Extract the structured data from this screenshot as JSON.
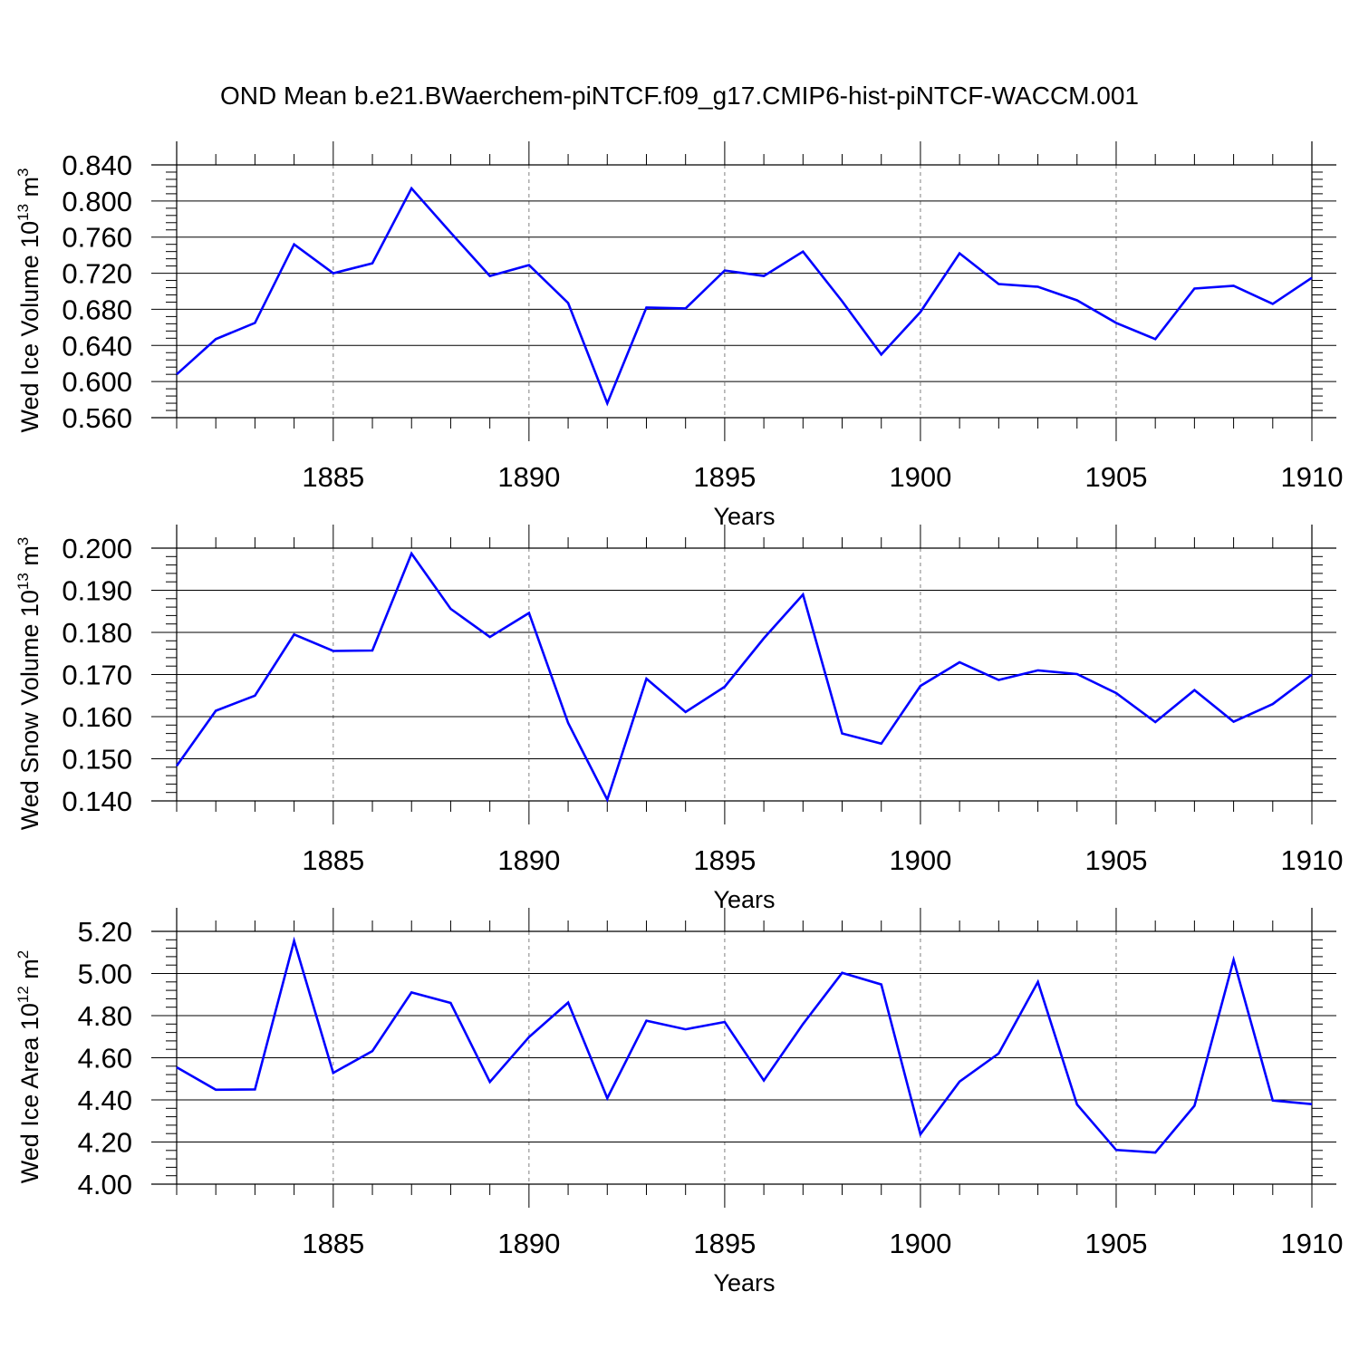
{
  "title": "OND Mean b.e21.BWaerchem-piNTCF.f09_g17.CMIP6-hist-piNTCF-WACCM.001",
  "colors": {
    "line": "#0000ff",
    "axis": "#000000",
    "grid": "#808080"
  },
  "chart_data": [
    {
      "type": "line",
      "ylabel": "Wed Ice Volume",
      "ylabel_unit": "10",
      "ylabel_exp": "13",
      "ylabel_unit2": "m",
      "ylabel_exp2": "3",
      "xlabel": "Years",
      "xlim": [
        1881,
        1910
      ],
      "ylim": [
        0.56,
        0.84
      ],
      "yticks": [
        "0.560",
        "0.600",
        "0.640",
        "0.680",
        "0.720",
        "0.760",
        "0.800",
        "0.840"
      ],
      "ytick_values": [
        0.56,
        0.6,
        0.64,
        0.68,
        0.72,
        0.76,
        0.8,
        0.84
      ],
      "xticks": [
        "1885",
        "1890",
        "1895",
        "1900",
        "1905",
        "1910"
      ],
      "xtick_values": [
        1885,
        1890,
        1895,
        1900,
        1905,
        1910
      ],
      "grid": "vertical dashed at major x ticks",
      "x": [
        1881,
        1882,
        1883,
        1884,
        1885,
        1886,
        1887,
        1888,
        1889,
        1890,
        1891,
        1892,
        1893,
        1894,
        1895,
        1896,
        1897,
        1898,
        1899,
        1900,
        1901,
        1902,
        1903,
        1904,
        1905,
        1906,
        1907,
        1908,
        1909,
        1910
      ],
      "values": [
        0.608,
        0.647,
        0.665,
        0.752,
        0.72,
        0.731,
        0.814,
        0.765,
        0.717,
        0.729,
        0.687,
        0.576,
        0.682,
        0.681,
        0.723,
        0.717,
        0.744,
        0.689,
        0.63,
        0.677,
        0.742,
        0.708,
        0.705,
        0.69,
        0.665,
        0.647,
        0.703,
        0.706,
        0.686,
        0.715
      ]
    },
    {
      "type": "line",
      "ylabel": "Wed Snow Volume",
      "ylabel_unit": "10",
      "ylabel_exp": "13",
      "ylabel_unit2": "m",
      "ylabel_exp2": "3",
      "xlabel": "Years",
      "xlim": [
        1881,
        1910
      ],
      "ylim": [
        0.14,
        0.2
      ],
      "yticks": [
        "0.140",
        "0.150",
        "0.160",
        "0.170",
        "0.180",
        "0.190",
        "0.200"
      ],
      "ytick_values": [
        0.14,
        0.15,
        0.16,
        0.17,
        0.18,
        0.19,
        0.2
      ],
      "xticks": [
        "1885",
        "1890",
        "1895",
        "1900",
        "1905",
        "1910"
      ],
      "xtick_values": [
        1885,
        1890,
        1895,
        1900,
        1905,
        1910
      ],
      "grid": "vertical dashed at major x ticks",
      "x": [
        1881,
        1882,
        1883,
        1884,
        1885,
        1886,
        1887,
        1888,
        1889,
        1890,
        1891,
        1892,
        1893,
        1894,
        1895,
        1896,
        1897,
        1898,
        1899,
        1900,
        1901,
        1902,
        1903,
        1904,
        1905,
        1906,
        1907,
        1908,
        1909,
        1910
      ],
      "values": [
        0.1483,
        0.1614,
        0.165,
        0.1795,
        0.1756,
        0.1757,
        0.1987,
        0.1856,
        0.1789,
        0.1846,
        0.1585,
        0.1403,
        0.169,
        0.1611,
        0.1671,
        0.1786,
        0.189,
        0.156,
        0.1536,
        0.1673,
        0.1729,
        0.1687,
        0.171,
        0.1701,
        0.1656,
        0.1587,
        0.1663,
        0.1588,
        0.163,
        0.17
      ]
    },
    {
      "type": "line",
      "ylabel": "Wed Ice Area",
      "ylabel_unit": "10",
      "ylabel_exp": "12",
      "ylabel_unit2": "m",
      "ylabel_exp2": "2",
      "xlabel": "Years",
      "xlim": [
        1881,
        1910
      ],
      "ylim": [
        4.0,
        5.2
      ],
      "yticks": [
        "4.00",
        "4.20",
        "4.40",
        "4.60",
        "4.80",
        "5.00",
        "5.20"
      ],
      "ytick_values": [
        4.0,
        4.2,
        4.4,
        4.6,
        4.8,
        5.0,
        5.2
      ],
      "xticks": [
        "1885",
        "1890",
        "1895",
        "1900",
        "1905",
        "1910"
      ],
      "xtick_values": [
        1885,
        1890,
        1895,
        1900,
        1905,
        1910
      ],
      "grid": "vertical dashed at major x ticks",
      "x": [
        1881,
        1882,
        1883,
        1884,
        1885,
        1886,
        1887,
        1888,
        1889,
        1890,
        1891,
        1892,
        1893,
        1894,
        1895,
        1896,
        1897,
        1898,
        1899,
        1900,
        1901,
        1902,
        1903,
        1904,
        1905,
        1906,
        1907,
        1908,
        1909,
        1910
      ],
      "values": [
        4.555,
        4.448,
        4.45,
        5.155,
        4.528,
        4.632,
        4.91,
        4.86,
        4.485,
        4.698,
        4.862,
        4.408,
        4.776,
        4.735,
        4.77,
        4.492,
        4.76,
        5.003,
        4.948,
        4.237,
        4.487,
        4.62,
        4.96,
        4.378,
        4.162,
        4.15,
        4.372,
        5.065,
        4.397,
        4.38
      ]
    }
  ]
}
